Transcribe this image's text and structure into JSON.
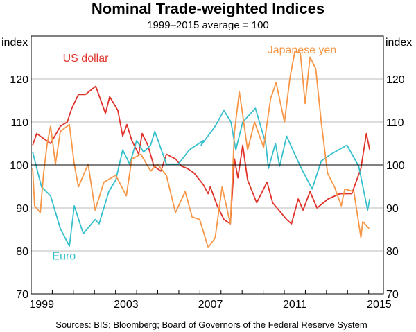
{
  "chart_data": {
    "type": "line",
    "title": "Nominal Trade-weighted Indices",
    "subtitle": "1999–2015 average = 100",
    "ylabel_left": "index",
    "ylabel_right": "index",
    "ylim": [
      70,
      130
    ],
    "xlim": [
      1999,
      2015.7
    ],
    "yticks": [
      70,
      80,
      90,
      100,
      110,
      120
    ],
    "xticks": [
      {
        "label": "1999",
        "x": 1999.5
      },
      {
        "label": "2003",
        "x": 2003.5
      },
      {
        "label": "2007",
        "x": 2007.5
      },
      {
        "label": "2011",
        "x": 2011.5
      },
      {
        "label": "2015",
        "x": 2015.5
      }
    ],
    "reference_line": 100,
    "grid": true,
    "source": "Sources:  BIS; Bloomberg; Board of Governors of the Federal Reserve System",
    "series": [
      {
        "name": "US dollar",
        "color": "#e0332b",
        "label_pos": [
          2000.5,
          124
        ],
        "x": [
          1999.07,
          1999.26,
          1999.92,
          2000.38,
          2000.71,
          2000.91,
          2001.24,
          2001.57,
          2002.06,
          2002.52,
          2002.72,
          2003.11,
          2003.34,
          2003.54,
          2003.77,
          2004.1,
          2004.26,
          2004.53,
          2004.82,
          2005.15,
          2005.41,
          2005.84,
          2006.14,
          2006.4,
          2006.73,
          2007.16,
          2007.39,
          2007.49,
          2007.82,
          2008.14,
          2008.44,
          2008.64,
          2008.8,
          2009.03,
          2009.26,
          2009.69,
          2010.18,
          2010.45,
          2011.11,
          2011.34,
          2011.66,
          2011.89,
          2012.22,
          2012.55,
          2013.08,
          2013.64,
          2014.2,
          2014.63,
          2014.89,
          2015.05
        ],
        "y": [
          104.6,
          107.3,
          105,
          109,
          110,
          113,
          116.4,
          116.4,
          118.3,
          112,
          115.9,
          112.7,
          106.7,
          109.4,
          105.7,
          102.5,
          107.3,
          104.6,
          99.7,
          98.6,
          102.5,
          101.4,
          99.7,
          99.2,
          98.1,
          95.4,
          93.3,
          94.9,
          90.5,
          87.3,
          86.3,
          101.4,
          97,
          104.6,
          96.5,
          91.2,
          96,
          91.2,
          87.3,
          86.3,
          92.1,
          89.5,
          93.8,
          90,
          92.1,
          93.3,
          93.3,
          99.2,
          107.3,
          103.5
        ]
      },
      {
        "name": "Euro",
        "color": "#36bfcc",
        "label_pos": [
          2000.0,
          78
        ],
        "x": [
          1999.07,
          1999.49,
          1999.92,
          2000.38,
          2000.81,
          2001.04,
          2001.47,
          2002.03,
          2002.22,
          2002.68,
          2003.01,
          2003.34,
          2003.67,
          2004.0,
          2004.33,
          2004.66,
          2004.86,
          2005.41,
          2005.97,
          2006.5,
          2007.16,
          2007.06,
          2007.72,
          2008.14,
          2008.47,
          2008.7,
          2009.03,
          2009.63,
          2010.12,
          2010.25,
          2010.58,
          2010.78,
          2011.11,
          2011.76,
          2012.32,
          2012.75,
          2013.21,
          2013.97,
          2014.53,
          2014.95,
          2015.05
        ],
        "y": [
          103,
          94.9,
          92.8,
          85.2,
          81.1,
          90.5,
          84,
          87.3,
          86.3,
          93.8,
          96.5,
          103.5,
          100.2,
          105.7,
          103,
          104.6,
          107.8,
          100.2,
          100.2,
          103.5,
          105.7,
          104.6,
          109,
          112.7,
          110,
          103.5,
          110,
          113.2,
          105,
          99.2,
          105,
          99.7,
          106.7,
          99.7,
          94.4,
          100.9,
          102.5,
          104.6,
          99.7,
          89.5,
          92.1
        ]
      },
      {
        "name": "Japanese yen",
        "color": "#f79646",
        "label_pos": [
          2010.2,
          126
        ],
        "x": [
          1999.07,
          1999.16,
          1999.43,
          1999.59,
          1999.76,
          1999.92,
          2000.15,
          2000.38,
          2000.81,
          2001.04,
          2001.24,
          2001.7,
          2002.03,
          2002.45,
          2003.01,
          2003.51,
          2003.77,
          2004.2,
          2004.66,
          2004.99,
          2005.41,
          2005.84,
          2006.3,
          2006.63,
          2006.99,
          2007.39,
          2007.72,
          2008.05,
          2008.44,
          2008.64,
          2008.87,
          2009.03,
          2009.26,
          2009.59,
          2010.02,
          2010.35,
          2010.61,
          2011.01,
          2011.27,
          2011.5,
          2011.76,
          2011.99,
          2012.22,
          2012.49,
          2012.75,
          2013.05,
          2013.38,
          2013.7,
          2013.87,
          2014.3,
          2014.63,
          2014.72,
          2015.02
        ],
        "y": [
          99.2,
          90.5,
          88.9,
          98.1,
          105,
          109,
          100.2,
          107.8,
          109.4,
          100.2,
          94.9,
          100.2,
          89.5,
          96,
          97.6,
          92.8,
          101.4,
          102.5,
          98.6,
          100.2,
          97.6,
          88.9,
          93.8,
          87.9,
          87.3,
          80.8,
          83,
          94.9,
          86.3,
          107.8,
          117,
          111.6,
          103.5,
          110,
          104.1,
          115.4,
          119.2,
          110,
          120.3,
          126.4,
          126.1,
          114.3,
          125.1,
          122.4,
          110,
          98.1,
          94.9,
          90.5,
          94.4,
          93.8,
          83.1,
          86.8,
          85.2
        ]
      }
    ]
  }
}
